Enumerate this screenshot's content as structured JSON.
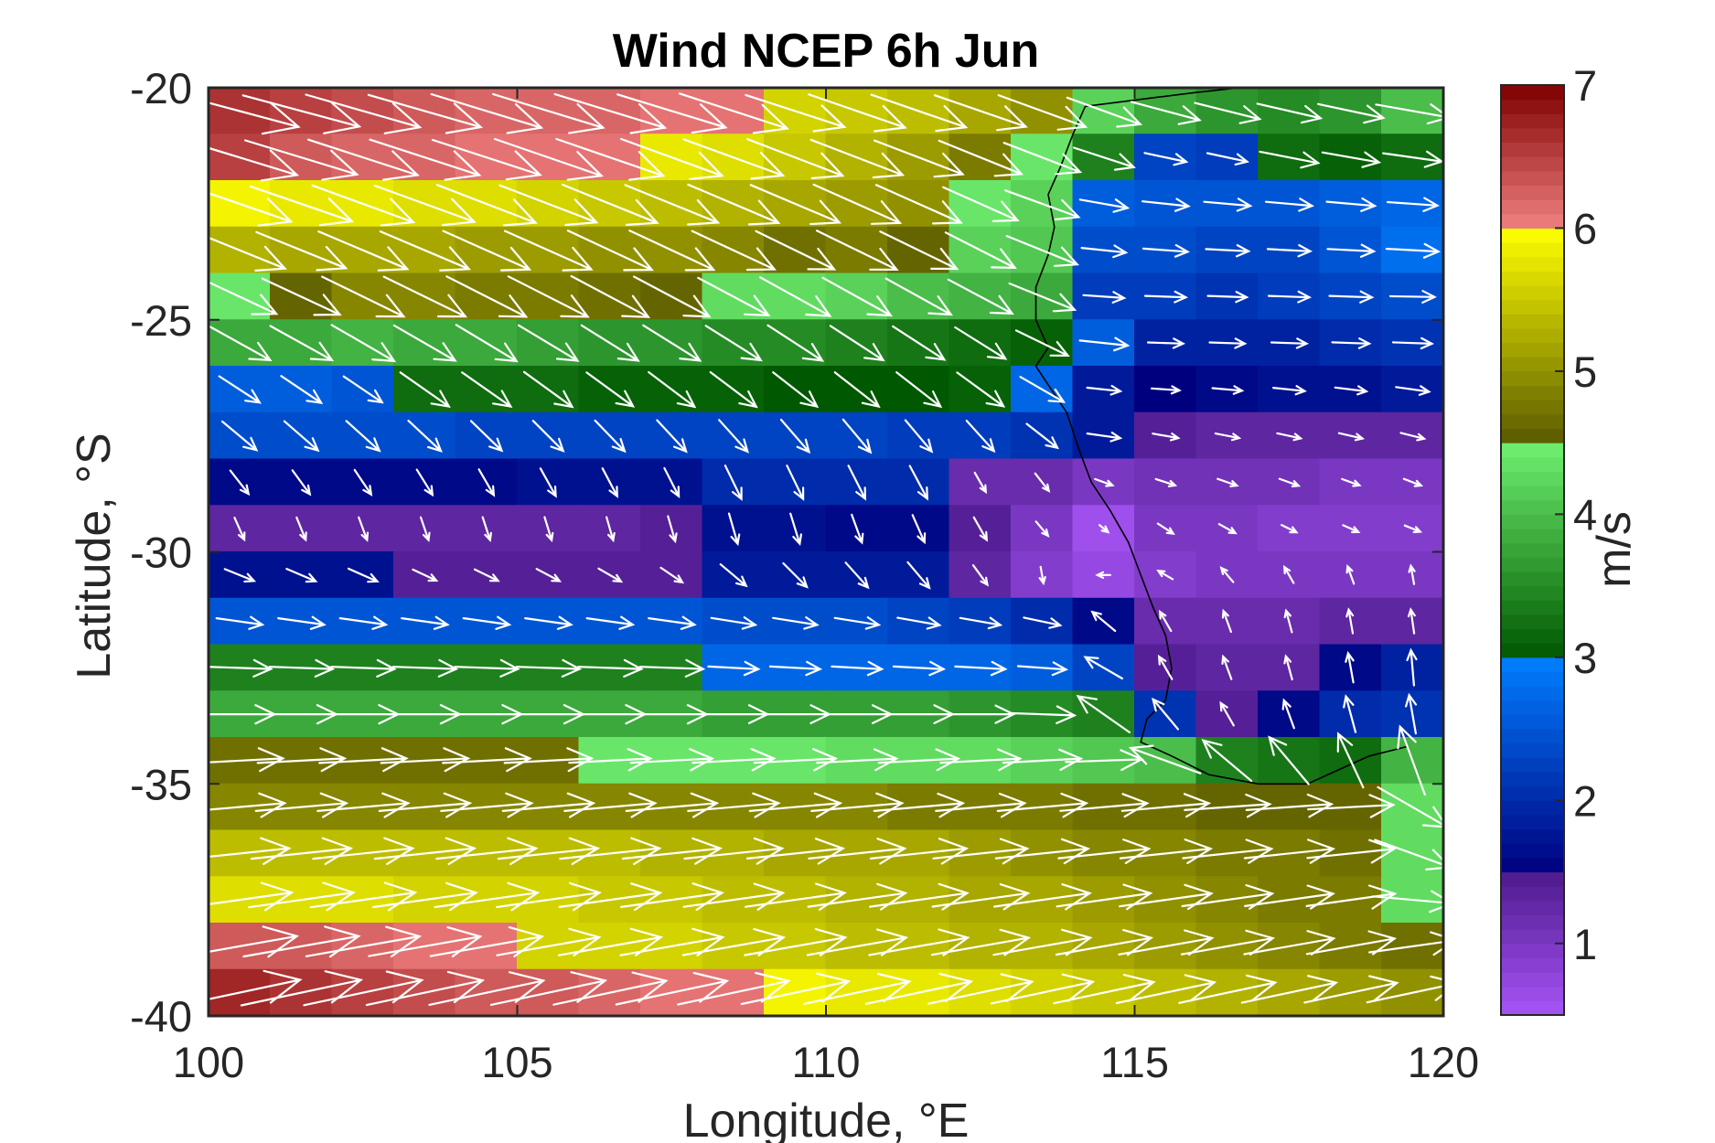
{
  "chart_data": {
    "type": "heatmap",
    "title": "Wind NCEP 6h Jun",
    "xlabel": "Longitude, °E",
    "ylabel": "Latitude, °S",
    "colorbar_label": "m/s",
    "xlim": [
      100,
      120
    ],
    "ylim": [
      -40,
      -20
    ],
    "xticks": [
      100,
      105,
      110,
      115,
      120
    ],
    "yticks": [
      -20,
      -25,
      -30,
      -35,
      -40
    ],
    "xtick_labels": [
      "100",
      "105",
      "110",
      "115",
      "120"
    ],
    "ytick_labels": [
      "-20",
      "-25",
      "-30",
      "-35",
      "-40"
    ],
    "clim": [
      0.5,
      7
    ],
    "colorbar_ticks": [
      1,
      2,
      3,
      4,
      5,
      6,
      7
    ],
    "colorbar_tick_labels": [
      "1",
      "2",
      "3",
      "4",
      "5",
      "6",
      "7"
    ],
    "colorbar_bands": [
      {
        "from": 0.5,
        "to": 1.5,
        "dark": "#4c1a8c",
        "light": "#a855f7"
      },
      {
        "from": 1.5,
        "to": 3.0,
        "dark": "#00007f",
        "light": "#0080ff"
      },
      {
        "from": 3.0,
        "to": 4.5,
        "dark": "#005800",
        "light": "#70f070"
      },
      {
        "from": 4.5,
        "to": 6.0,
        "dark": "#5a5a00",
        "light": "#ffff00"
      },
      {
        "from": 6.0,
        "to": 7.0,
        "dark": "#7f0000",
        "light": "#f08080"
      }
    ],
    "grid": false,
    "arrow_color": "#ffffff",
    "coastline_color": "#000000",
    "lon": [
      100,
      101,
      102,
      103,
      104,
      105,
      106,
      107,
      108,
      109,
      110,
      111,
      112,
      113,
      114,
      115,
      116,
      117,
      118,
      119
    ],
    "lat": [
      -20.5,
      -21.5,
      -22.5,
      -23.5,
      -24.5,
      -25.5,
      -26.5,
      -27.5,
      -28.5,
      -29.5,
      -30.5,
      -31.5,
      -32.5,
      -33.5,
      -34.5,
      -35.5,
      -36.5,
      -37.5,
      -38.5,
      -39.5
    ],
    "speed": [
      [
        6.6,
        6.5,
        6.4,
        6.3,
        6.2,
        6.2,
        6.2,
        6.1,
        6.1,
        5.6,
        5.5,
        5.4,
        5.2,
        5.0,
        4.2,
        3.8,
        3.6,
        3.5,
        3.6,
        4.0
      ],
      [
        6.5,
        6.3,
        6.2,
        6.2,
        6.1,
        6.1,
        6.1,
        5.8,
        5.7,
        5.5,
        5.3,
        5.1,
        4.8,
        4.4,
        3.4,
        2.3,
        2.2,
        3.2,
        3.1,
        3.2
      ],
      [
        5.9,
        5.8,
        5.8,
        5.7,
        5.7,
        5.6,
        5.5,
        5.4,
        5.3,
        5.2,
        5.1,
        5.0,
        4.4,
        4.2,
        2.6,
        2.5,
        2.5,
        2.5,
        2.6,
        2.7
      ],
      [
        5.3,
        5.2,
        5.2,
        5.2,
        5.1,
        5.1,
        5.0,
        5.0,
        4.9,
        4.7,
        4.8,
        4.6,
        4.2,
        4.1,
        2.4,
        2.4,
        2.3,
        2.3,
        2.5,
        2.8
      ],
      [
        4.4,
        4.6,
        4.9,
        4.9,
        4.8,
        4.8,
        4.7,
        4.6,
        4.3,
        4.3,
        4.2,
        4.0,
        3.9,
        3.8,
        2.2,
        2.2,
        2.1,
        2.2,
        2.3,
        2.4
      ],
      [
        3.8,
        3.8,
        3.9,
        3.8,
        3.8,
        3.7,
        3.6,
        3.6,
        3.5,
        3.5,
        3.4,
        3.3,
        3.2,
        3.1,
        2.6,
        1.9,
        1.9,
        1.9,
        2.0,
        2.1
      ],
      [
        2.6,
        2.6,
        2.5,
        3.2,
        3.2,
        3.2,
        3.1,
        3.1,
        3.1,
        3.0,
        3.0,
        3.0,
        3.1,
        2.7,
        1.8,
        1.5,
        1.6,
        1.7,
        1.7,
        1.8
      ],
      [
        2.4,
        2.4,
        2.4,
        2.4,
        2.3,
        2.3,
        2.3,
        2.3,
        2.3,
        2.3,
        2.3,
        2.2,
        2.2,
        2.1,
        1.8,
        1.4,
        1.3,
        1.3,
        1.3,
        1.3
      ],
      [
        1.6,
        1.6,
        1.6,
        1.6,
        1.6,
        1.7,
        1.7,
        1.7,
        2.0,
        2.0,
        2.0,
        2.0,
        1.2,
        1.2,
        1.0,
        1.1,
        1.1,
        1.1,
        1.0,
        1.0
      ],
      [
        1.3,
        1.3,
        1.3,
        1.3,
        1.3,
        1.3,
        1.3,
        1.4,
        1.7,
        1.7,
        1.6,
        1.6,
        1.4,
        1.0,
        0.6,
        1.0,
        1.0,
        0.9,
        0.9,
        0.9
      ],
      [
        1.7,
        1.7,
        1.7,
        1.4,
        1.4,
        1.4,
        1.4,
        1.4,
        1.8,
        1.8,
        1.8,
        1.8,
        1.3,
        0.9,
        0.7,
        0.9,
        1.0,
        1.0,
        1.0,
        1.0
      ],
      [
        2.5,
        2.5,
        2.5,
        2.5,
        2.5,
        2.5,
        2.5,
        2.5,
        2.4,
        2.4,
        2.4,
        2.3,
        2.2,
        2.0,
        1.6,
        1.2,
        1.2,
        1.2,
        1.3,
        1.3
      ],
      [
        3.4,
        3.4,
        3.4,
        3.4,
        3.4,
        3.4,
        3.4,
        3.4,
        2.7,
        2.7,
        2.7,
        2.7,
        2.7,
        2.6,
        2.3,
        1.4,
        1.3,
        1.3,
        1.6,
        1.9
      ],
      [
        3.8,
        3.8,
        3.8,
        3.8,
        3.8,
        3.8,
        3.8,
        3.8,
        3.7,
        3.7,
        3.7,
        3.7,
        3.6,
        3.5,
        3.4,
        2.1,
        1.4,
        1.6,
        2.0,
        2.1
      ],
      [
        4.7,
        4.7,
        4.7,
        4.7,
        4.7,
        4.7,
        4.4,
        4.4,
        4.4,
        4.4,
        4.3,
        4.3,
        4.3,
        4.2,
        4.1,
        4.0,
        3.4,
        3.3,
        3.2,
        3.9
      ],
      [
        4.9,
        4.9,
        4.9,
        4.9,
        4.9,
        4.9,
        4.9,
        4.9,
        4.9,
        4.9,
        4.9,
        4.8,
        4.8,
        4.8,
        4.7,
        4.7,
        4.6,
        4.6,
        4.6,
        4.3
      ],
      [
        5.4,
        5.4,
        5.4,
        5.4,
        5.4,
        5.4,
        5.4,
        5.3,
        5.3,
        5.2,
        5.2,
        5.2,
        5.1,
        5.0,
        4.9,
        4.9,
        4.8,
        4.8,
        4.7,
        4.3
      ],
      [
        5.7,
        5.7,
        5.7,
        5.6,
        5.6,
        5.6,
        5.5,
        5.5,
        5.4,
        5.4,
        5.3,
        5.3,
        5.2,
        5.2,
        5.1,
        5.0,
        4.9,
        4.8,
        4.8,
        4.3
      ],
      [
        6.3,
        6.3,
        6.2,
        6.1,
        6.1,
        5.6,
        5.6,
        5.6,
        5.5,
        5.5,
        5.4,
        5.4,
        5.3,
        5.3,
        5.2,
        5.1,
        5.0,
        4.9,
        4.8,
        4.7
      ],
      [
        6.7,
        6.6,
        6.5,
        6.4,
        6.3,
        6.3,
        6.2,
        6.1,
        6.1,
        5.9,
        5.8,
        5.8,
        5.7,
        5.6,
        5.5,
        5.4,
        5.3,
        5.2,
        5.1,
        5.0
      ]
    ],
    "direction_deg": [
      [
        -15,
        -15,
        -16,
        -16,
        -17,
        -17,
        -17,
        -17,
        -18,
        -18,
        -19,
        -19,
        -19,
        -20,
        -20,
        -15,
        -14,
        -13,
        -12,
        -10
      ],
      [
        -17,
        -17,
        -18,
        -18,
        -18,
        -19,
        -19,
        -20,
        -20,
        -21,
        -21,
        -21,
        -22,
        -21,
        -18,
        -12,
        -12,
        -11,
        -10,
        -8
      ],
      [
        -19,
        -19,
        -20,
        -20,
        -21,
        -21,
        -22,
        -22,
        -23,
        -23,
        -24,
        -24,
        -24,
        -20,
        -10,
        -6,
        -5,
        -5,
        -5,
        -4
      ],
      [
        -22,
        -22,
        -23,
        -23,
        -24,
        -24,
        -25,
        -25,
        -25,
        -26,
        -26,
        -26,
        -27,
        -22,
        -6,
        -4,
        -3,
        -3,
        -3,
        -3
      ],
      [
        -25,
        -25,
        -26,
        -26,
        -27,
        -27,
        -28,
        -28,
        -28,
        -29,
        -29,
        -29,
        -28,
        -22,
        -4,
        -2,
        -2,
        -2,
        -2,
        -1
      ],
      [
        -29,
        -29,
        -30,
        -30,
        -31,
        -31,
        -32,
        -32,
        -32,
        -33,
        -33,
        -33,
        -32,
        -26,
        -6,
        -2,
        -2,
        -2,
        -2,
        -2
      ],
      [
        -33,
        -34,
        -34,
        -35,
        -35,
        -36,
        -36,
        -37,
        -37,
        -38,
        -38,
        -38,
        -36,
        -30,
        -6,
        -4,
        -5,
        -6,
        -7,
        -8
      ],
      [
        -40,
        -41,
        -42,
        -43,
        -44,
        -45,
        -46,
        -47,
        -48,
        -49,
        -50,
        -50,
        -48,
        -38,
        -8,
        -10,
        -11,
        -12,
        -13,
        -14
      ],
      [
        -52,
        -54,
        -56,
        -58,
        -60,
        -61,
        -62,
        -63,
        -64,
        -64,
        -63,
        -62,
        -60,
        -52,
        -20,
        -18,
        -19,
        -20,
        -20,
        -21
      ],
      [
        -66,
        -68,
        -70,
        -71,
        -72,
        -73,
        -74,
        -74,
        -74,
        -73,
        -70,
        -66,
        -60,
        -50,
        -40,
        -33,
        -29,
        -26,
        -24,
        -22
      ],
      [
        -22,
        -23,
        -24,
        -25,
        -26,
        -28,
        -30,
        -34,
        -40,
        -45,
        -48,
        -50,
        -54,
        -80,
        -180,
        -210,
        -230,
        -240,
        -250,
        -260
      ],
      [
        -8,
        -8,
        -8,
        -8,
        -8,
        -8,
        -8,
        -8,
        -9,
        -9,
        -9,
        -10,
        -10,
        -12,
        -220,
        -240,
        -250,
        -255,
        -260,
        -262
      ],
      [
        -2,
        -2,
        -2,
        -2,
        -2,
        -2,
        -2,
        -2,
        -3,
        -3,
        -3,
        -3,
        -3,
        -4,
        -210,
        -240,
        -250,
        -255,
        -260,
        -265
      ],
      [
        0,
        0,
        0,
        0,
        0,
        0,
        0,
        0,
        0,
        0,
        0,
        0,
        0,
        -2,
        -215,
        -230,
        -240,
        -250,
        -255,
        -260
      ],
      [
        3,
        3,
        3,
        3,
        3,
        3,
        3,
        3,
        3,
        3,
        3,
        3,
        3,
        3,
        2,
        -200,
        -220,
        -230,
        -245,
        -250
      ],
      [
        5,
        5,
        5,
        5,
        5,
        5,
        5,
        5,
        5,
        5,
        5,
        5,
        5,
        5,
        5,
        5,
        4,
        4,
        3,
        -30
      ],
      [
        6,
        6,
        6,
        6,
        6,
        6,
        6,
        6,
        6,
        6,
        6,
        6,
        6,
        6,
        6,
        6,
        6,
        6,
        6,
        -20
      ],
      [
        8,
        8,
        8,
        8,
        8,
        8,
        8,
        8,
        8,
        8,
        8,
        8,
        8,
        8,
        8,
        8,
        8,
        8,
        8,
        -5
      ],
      [
        10,
        10,
        10,
        10,
        10,
        10,
        10,
        10,
        10,
        10,
        10,
        10,
        10,
        10,
        10,
        10,
        10,
        10,
        10,
        8
      ],
      [
        12,
        12,
        12,
        12,
        12,
        12,
        12,
        12,
        12,
        12,
        12,
        12,
        12,
        12,
        12,
        12,
        12,
        12,
        12,
        12
      ]
    ],
    "coastline": [
      [
        114.2,
        -20.4
      ],
      [
        114.0,
        -21.0
      ],
      [
        113.8,
        -21.7
      ],
      [
        113.6,
        -22.3
      ],
      [
        113.7,
        -23.0
      ],
      [
        113.6,
        -23.6
      ],
      [
        113.4,
        -24.3
      ],
      [
        113.4,
        -25.0
      ],
      [
        113.6,
        -25.6
      ],
      [
        113.4,
        -26.0
      ],
      [
        113.6,
        -26.4
      ],
      [
        113.9,
        -27.0
      ],
      [
        114.1,
        -27.8
      ],
      [
        114.3,
        -28.5
      ],
      [
        114.6,
        -29.1
      ],
      [
        114.9,
        -29.8
      ],
      [
        115.1,
        -30.5
      ],
      [
        115.3,
        -31.2
      ],
      [
        115.5,
        -31.8
      ],
      [
        115.6,
        -32.5
      ],
      [
        115.5,
        -33.2
      ],
      [
        115.2,
        -33.6
      ],
      [
        115.1,
        -34.1
      ],
      [
        115.6,
        -34.4
      ],
      [
        116.2,
        -34.8
      ],
      [
        117.0,
        -35.0
      ],
      [
        117.8,
        -35.0
      ],
      [
        118.3,
        -34.7
      ],
      [
        118.8,
        -34.4
      ],
      [
        119.4,
        -34.2
      ]
    ],
    "coastline_north": [
      [
        114.2,
        -20.4
      ],
      [
        114.8,
        -20.3
      ],
      [
        115.4,
        -20.2
      ],
      [
        116.0,
        -20.1
      ],
      [
        116.7,
        -20.0
      ],
      [
        117.4,
        -19.9
      ],
      [
        118.2,
        -19.8
      ],
      [
        118.9,
        -19.8
      ],
      [
        119.6,
        -19.6
      ]
    ]
  }
}
